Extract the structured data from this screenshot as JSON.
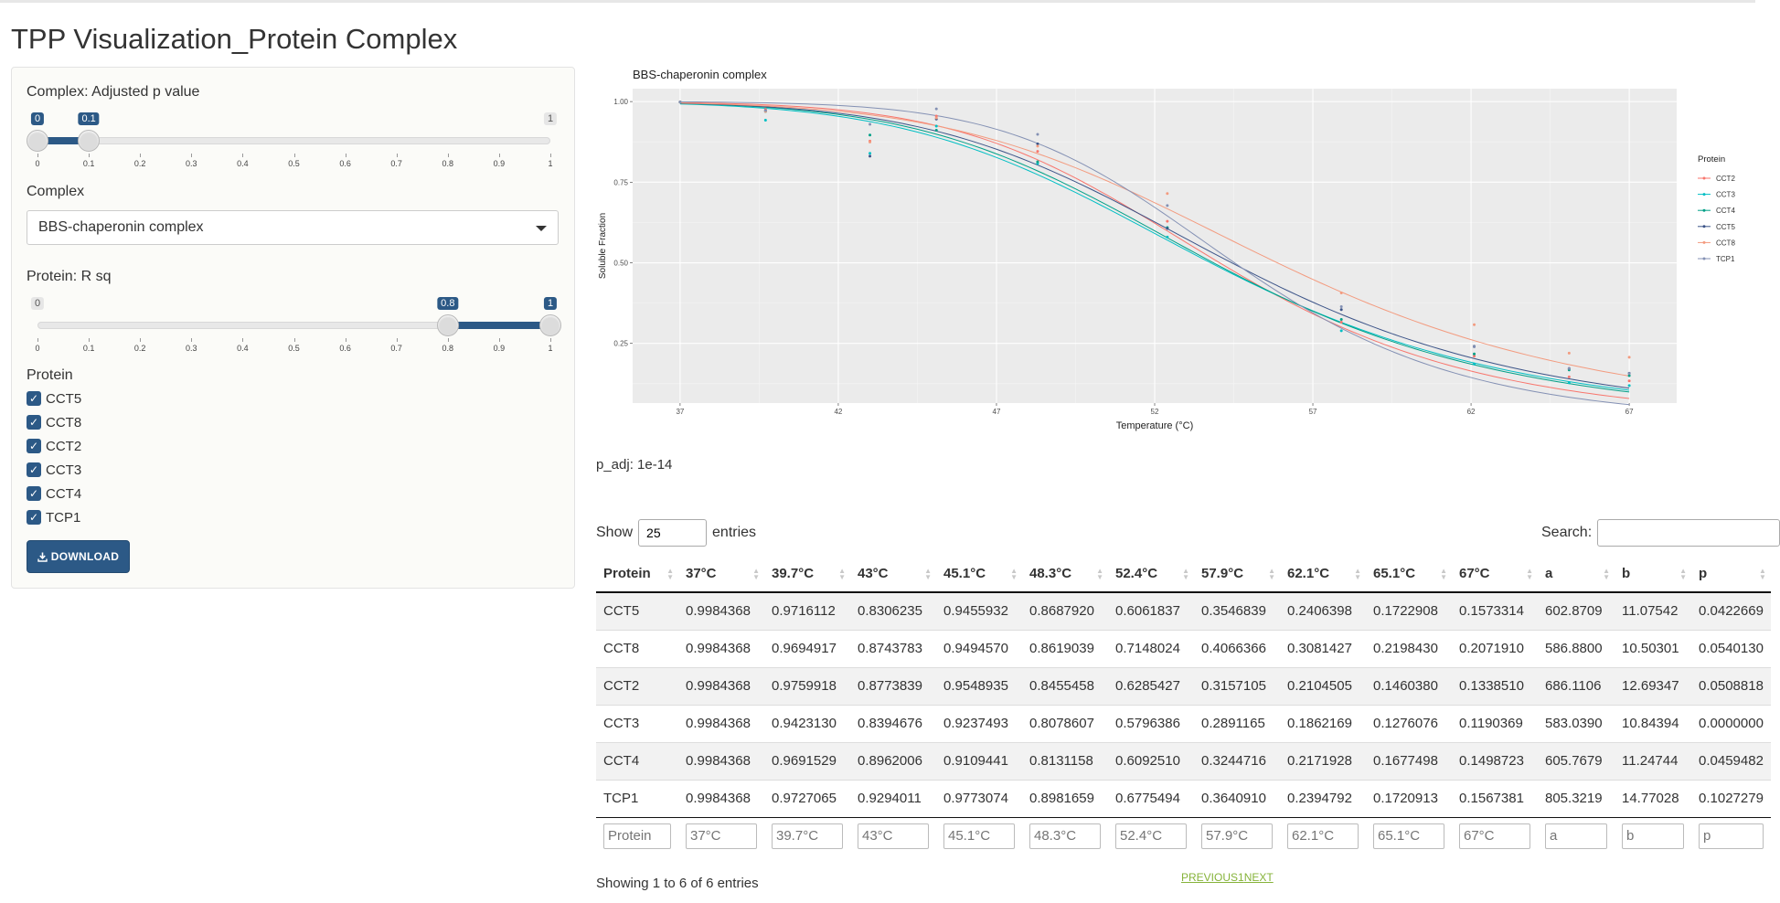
{
  "app": {
    "title": "TPP Visualization_Protein Complex"
  },
  "sidebar": {
    "slider1": {
      "label": "Complex: Adjusted p value",
      "min": 0,
      "max": 1,
      "low": 0,
      "high": 0.1,
      "ticks": [
        "0",
        "0.1",
        "0.2",
        "0.3",
        "0.4",
        "0.5",
        "0.6",
        "0.7",
        "0.8",
        "0.9",
        "1"
      ],
      "min_label": "0",
      "max_label": "1",
      "low_label": "0",
      "high_label": "0.1"
    },
    "complex": {
      "label": "Complex",
      "selected": "BBS-chaperonin complex"
    },
    "slider2": {
      "label": "Protein: R sq",
      "min": 0,
      "max": 1,
      "low": 0.8,
      "high": 1,
      "ticks": [
        "0",
        "0.1",
        "0.2",
        "0.3",
        "0.4",
        "0.5",
        "0.6",
        "0.7",
        "0.8",
        "0.9",
        "1"
      ],
      "min_label": "0",
      "max_label": "1",
      "low_label": "0.8",
      "high_label": "1"
    },
    "protein": {
      "label": "Protein",
      "items": [
        "CCT5",
        "CCT8",
        "CCT2",
        "CCT3",
        "CCT4",
        "TCP1"
      ]
    },
    "download_label": "DOWNLOAD"
  },
  "chart_data": {
    "type": "line",
    "title": "BBS-chaperonin complex",
    "xlabel": "Temperature (°C)",
    "ylabel": "Soluble Fraction",
    "xlim": [
      35.5,
      68.5
    ],
    "ylim": [
      0.065,
      1.04
    ],
    "xticks": [
      37,
      42,
      47,
      52,
      57,
      62,
      67
    ],
    "yticks": [
      0.25,
      0.5,
      0.75,
      1.0
    ],
    "ytick_labels": [
      "0.25",
      "0.50",
      "0.75",
      "1.00"
    ],
    "grid": true,
    "legend": {
      "title": "Protein",
      "position": "right"
    },
    "x": [
      37,
      39.7,
      43,
      45.1,
      48.3,
      52.4,
      57.9,
      62.1,
      65.1,
      67
    ],
    "series": [
      {
        "name": "CCT2",
        "color": "#F8766D",
        "a": 686.1106,
        "b": 12.69347,
        "values": [
          0.9984368,
          0.9759918,
          0.8773839,
          0.9548935,
          0.8455458,
          0.6285427,
          0.3157105,
          0.2104505,
          0.146038,
          0.133851
        ]
      },
      {
        "name": "CCT3",
        "color": "#00BFC4",
        "a": 583.039,
        "b": 10.84394,
        "values": [
          0.9984368,
          0.942313,
          0.8394676,
          0.9237493,
          0.8078607,
          0.5796386,
          0.2891165,
          0.1862169,
          0.1276076,
          0.1190369
        ]
      },
      {
        "name": "CCT4",
        "color": "#00A087",
        "a": 605.7679,
        "b": 11.24744,
        "values": [
          0.9984368,
          0.9691529,
          0.8962006,
          0.9109441,
          0.8131158,
          0.609251,
          0.3244716,
          0.2171928,
          0.1677498,
          0.1498723
        ]
      },
      {
        "name": "CCT5",
        "color": "#3C5488",
        "a": 602.8709,
        "b": 11.07542,
        "values": [
          0.9984368,
          0.9716112,
          0.8306235,
          0.9455932,
          0.868792,
          0.6061837,
          0.3546839,
          0.2406398,
          0.1722908,
          0.1573314
        ]
      },
      {
        "name": "CCT8",
        "color": "#F39B7F",
        "a": 586.88,
        "b": 10.50301,
        "values": [
          0.9984368,
          0.9694917,
          0.8743783,
          0.949457,
          0.8619039,
          0.7148024,
          0.4066366,
          0.3081427,
          0.219843,
          0.207191
        ]
      },
      {
        "name": "TCP1",
        "color": "#8491B4",
        "a": 805.3219,
        "b": 14.77028,
        "values": [
          0.9984368,
          0.9727065,
          0.9294011,
          0.9773074,
          0.8981659,
          0.6775494,
          0.364091,
          0.2394792,
          0.1720913,
          0.1567381
        ]
      }
    ]
  },
  "padj_text": "p_adj: 1e-14",
  "table": {
    "show_label": "Show",
    "length_value": "25",
    "entries_label": "entries",
    "search_label": "Search:",
    "columns": [
      "Protein",
      "37°C",
      "39.7°C",
      "43°C",
      "45.1°C",
      "48.3°C",
      "52.4°C",
      "57.9°C",
      "62.1°C",
      "65.1°C",
      "67°C",
      "a",
      "b",
      "p"
    ],
    "rows": [
      [
        "CCT5",
        "0.9984368",
        "0.9716112",
        "0.8306235",
        "0.9455932",
        "0.8687920",
        "0.6061837",
        "0.3546839",
        "0.2406398",
        "0.1722908",
        "0.1573314",
        "602.8709",
        "11.07542",
        "0.0422669"
      ],
      [
        "CCT8",
        "0.9984368",
        "0.9694917",
        "0.8743783",
        "0.9494570",
        "0.8619039",
        "0.7148024",
        "0.4066366",
        "0.3081427",
        "0.2198430",
        "0.2071910",
        "586.8800",
        "10.50301",
        "0.0540130"
      ],
      [
        "CCT2",
        "0.9984368",
        "0.9759918",
        "0.8773839",
        "0.9548935",
        "0.8455458",
        "0.6285427",
        "0.3157105",
        "0.2104505",
        "0.1460380",
        "0.1338510",
        "686.1106",
        "12.69347",
        "0.0508818"
      ],
      [
        "CCT3",
        "0.9984368",
        "0.9423130",
        "0.8394676",
        "0.9237493",
        "0.8078607",
        "0.5796386",
        "0.2891165",
        "0.1862169",
        "0.1276076",
        "0.1190369",
        "583.0390",
        "10.84394",
        "0.0000000"
      ],
      [
        "CCT4",
        "0.9984368",
        "0.9691529",
        "0.8962006",
        "0.9109441",
        "0.8131158",
        "0.6092510",
        "0.3244716",
        "0.2171928",
        "0.1677498",
        "0.1498723",
        "605.7679",
        "11.24744",
        "0.0459482"
      ],
      [
        "TCP1",
        "0.9984368",
        "0.9727065",
        "0.9294011",
        "0.9773074",
        "0.8981659",
        "0.6775494",
        "0.3640910",
        "0.2394792",
        "0.1720913",
        "0.1567381",
        "805.3219",
        "14.77028",
        "0.1027279"
      ]
    ],
    "info": "Showing 1 to 6 of 6 entries",
    "pager": {
      "prev": "PREVIOUS",
      "page": "1",
      "next": "NEXT"
    }
  }
}
